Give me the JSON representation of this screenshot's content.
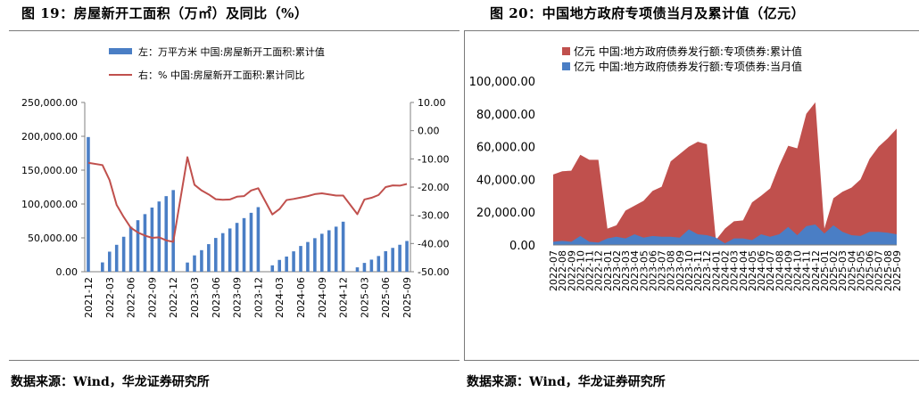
{
  "panels": [
    {
      "title": "图 19：房屋新开工面积（万㎡）及同比（%）",
      "source": "数据来源：Wind，华龙证券研究所"
    },
    {
      "title": "图 20：中国地方政府专项债当月及累计值（亿元）",
      "source": "数据来源：Wind，华龙证券研究所"
    }
  ],
  "colors": {
    "bar_blue": "#4a7ec5",
    "line_red": "#c0504d",
    "area_red": "#c0504d",
    "area_blue": "#4a7ec5"
  },
  "chart_data": [
    {
      "type": "bar",
      "title": "房屋新开工面积及同比",
      "legend": [
        "左：万平方米 中国:房屋新开工面积:累计值",
        "右：% 中国:房屋新开工面积:累计同比"
      ],
      "y_left": {
        "lim": [
          0,
          250000
        ],
        "ticks": [
          "0.00",
          "50,000.00",
          "100,000.00",
          "150,000.00",
          "200,000.00",
          "250,000.00"
        ]
      },
      "y_right": {
        "lim": [
          -50,
          10
        ],
        "ticks": [
          "-50.00",
          "-40.00",
          "-30.00",
          "-20.00",
          "-10.00",
          "0.00",
          "10.00"
        ]
      },
      "x_tick_labels": [
        "2021-12",
        "2022-03",
        "2022-06",
        "2022-09",
        "2022-12",
        "2023-03",
        "2023-06",
        "2023-09",
        "2023-12",
        "2024-03",
        "2024-06",
        "2024-09",
        "2024-12",
        "2025-03",
        "2025-06",
        "2025-09"
      ],
      "categories": [
        "2021-12",
        "2022-01",
        "2022-02",
        "2022-03",
        "2022-04",
        "2022-05",
        "2022-06",
        "2022-07",
        "2022-08",
        "2022-09",
        "2022-10",
        "2022-11",
        "2022-12",
        "2023-01",
        "2023-02",
        "2023-03",
        "2023-04",
        "2023-05",
        "2023-06",
        "2023-07",
        "2023-08",
        "2023-09",
        "2023-10",
        "2023-11",
        "2023-12",
        "2024-01",
        "2024-02",
        "2024-03",
        "2024-04",
        "2024-05",
        "2024-06",
        "2024-07",
        "2024-08",
        "2024-09",
        "2024-10",
        "2024-11",
        "2024-12",
        "2025-01",
        "2025-02",
        "2025-03",
        "2025-04",
        "2025-05",
        "2025-06",
        "2025-07",
        "2025-08",
        "2025-09"
      ],
      "series": [
        {
          "name": "房屋新开工面积:累计值",
          "axis": "left",
          "kind": "bar",
          "values": [
            198895,
            null,
            13760,
            29638,
            39739,
            51628,
            66423,
            76080,
            85062,
            94767,
            103722,
            111632,
            120587,
            null,
            13567,
            24121,
            31836,
            40724,
            49880,
            56969,
            63891,
            72123,
            79177,
            86999,
            95376,
            null,
            9429,
            17429,
            22394,
            30090,
            38023,
            43876,
            49551,
            56051,
            61221,
            66552,
            73893,
            null,
            6464,
            12996,
            17836,
            23184,
            30364,
            35206,
            39801,
            45399
          ]
        },
        {
          "name": "房屋新开工面积:累计同比",
          "axis": "right",
          "kind": "line",
          "values": [
            -11.4,
            null,
            -12.2,
            -17.5,
            -26.3,
            -30.6,
            -34.4,
            -36.1,
            -37.2,
            -38.0,
            -37.8,
            -38.9,
            -39.4,
            null,
            -9.4,
            -19.2,
            -21.2,
            -22.6,
            -24.3,
            -24.5,
            -24.4,
            -23.4,
            -23.2,
            -21.2,
            -20.4,
            null,
            -29.7,
            -27.8,
            -24.6,
            -24.2,
            -23.7,
            -23.2,
            -22.5,
            -22.2,
            -22.6,
            -23.0,
            -23.0,
            null,
            -29.6,
            -24.4,
            -23.8,
            -22.8,
            -20.0,
            -19.4,
            -19.5,
            -18.9
          ]
        }
      ]
    },
    {
      "type": "area",
      "title": "中国地方政府专项债当月及累计值",
      "legend": [
        "亿元  中国:地方政府债券发行额:专项债券:累计值",
        "亿元  中国:地方政府债券发行额:专项债券:当月值"
      ],
      "y": {
        "lim": [
          0,
          100000
        ],
        "ticks": [
          "0.00",
          "20,000.00",
          "40,000.00",
          "60,000.00",
          "80,000.00",
          "100,000.00"
        ]
      },
      "categories": [
        "2022-07",
        "2022-08",
        "2022-09",
        "2022-10",
        "2022-11",
        "2022-12",
        "2023-01",
        "2023-02",
        "2023-03",
        "2023-04",
        "2023-05",
        "2023-06",
        "2023-07",
        "2023-08",
        "2023-09",
        "2023-10",
        "2023-11",
        "2023-12",
        "2024-01",
        "2024-02",
        "2024-03",
        "2024-04",
        "2024-05",
        "2024-06",
        "2024-07",
        "2024-08",
        "2024-09",
        "2024-10",
        "2024-11",
        "2024-12",
        "2025-01",
        "2025-02",
        "2025-03",
        "2025-04",
        "2025-05",
        "2025-06",
        "2025-07",
        "2025-08",
        "2025-09"
      ],
      "series": [
        {
          "name": "专项债券:累计值",
          "values": [
            43000,
            45000,
            45300,
            55000,
            52000,
            52000,
            10000,
            12000,
            21000,
            24000,
            27000,
            33000,
            35500,
            51000,
            55500,
            60000,
            63000,
            61500,
            3000,
            10000,
            14500,
            15000,
            26000,
            30000,
            34500,
            48500,
            60500,
            59000,
            80000,
            87000,
            10000,
            28500,
            32500,
            35000,
            40000,
            52500,
            60000,
            65000,
            71000
          ]
        },
        {
          "name": "专项债券:当月值",
          "values": [
            2000,
            2500,
            2000,
            5500,
            2000,
            1500,
            4000,
            5000,
            4000,
            6500,
            4500,
            5500,
            5000,
            5000,
            4500,
            9500,
            6500,
            6000,
            4500,
            1000,
            4000,
            4000,
            3000,
            6500,
            5000,
            6500,
            11000,
            6000,
            11500,
            12500,
            7000,
            12000,
            8000,
            6000,
            5500,
            8000,
            8000,
            7500,
            6500
          ]
        }
      ]
    }
  ]
}
